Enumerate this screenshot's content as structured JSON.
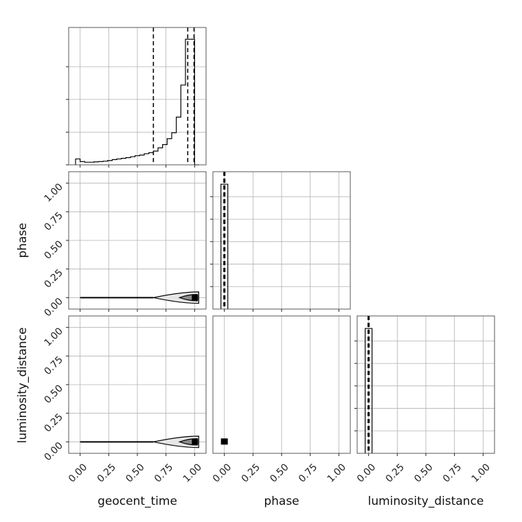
{
  "chart_data": {
    "type": "corner",
    "parameters": [
      "geocent_time",
      "phase",
      "luminosity_distance"
    ],
    "tick_labels": [
      "0.00",
      "0.25",
      "0.50",
      "0.75",
      "1.00"
    ],
    "grid": true,
    "geocent_time_histogram": {
      "bin_edges": [
        -0.04,
        0.0,
        0.04,
        0.08,
        0.12,
        0.16,
        0.2,
        0.24,
        0.28,
        0.32,
        0.36,
        0.4,
        0.44,
        0.48,
        0.52,
        0.56,
        0.6,
        0.64,
        0.68,
        0.72,
        0.76,
        0.8,
        0.84,
        0.88,
        0.92,
        0.96,
        1.0,
        1.04
      ],
      "counts": [
        0.045,
        0.025,
        0.02,
        0.02,
        0.023,
        0.025,
        0.028,
        0.033,
        0.04,
        0.045,
        0.05,
        0.055,
        0.062,
        0.07,
        0.075,
        0.085,
        0.093,
        0.105,
        0.13,
        0.155,
        0.2,
        0.245,
        0.365,
        0.61,
        0.96,
        0.96,
        0.0
      ],
      "quantiles": [
        0.64,
        0.94,
        0.995
      ],
      "ylim": [
        0,
        1.05
      ]
    },
    "phase_histogram": {
      "bin_edges": [
        -0.03,
        0.0,
        0.03
      ],
      "counts": [
        1.0,
        1.0
      ],
      "quantiles": [
        -0.005,
        0.0,
        0.005
      ]
    },
    "luminosity_distance_histogram": {
      "bin_edges": [
        -0.03,
        0.0,
        0.03
      ],
      "counts": [
        1.0,
        1.0
      ],
      "quantiles": [
        -0.005,
        0.0,
        0.005
      ]
    },
    "geocent_time_vs_phase": {
      "marginal_value": 0.0,
      "contour_start_x": 0.64,
      "peak_x": 1.0,
      "contour_max_halfwidth": 0.05
    },
    "geocent_time_vs_luminosity_distance": {
      "marginal_value": 0.0,
      "contour_start_x": 0.64,
      "peak_x": 1.0,
      "contour_max_halfwidth": 0.05
    },
    "phase_vs_luminosity_distance": {
      "point": [
        0.0,
        0.0
      ]
    }
  }
}
